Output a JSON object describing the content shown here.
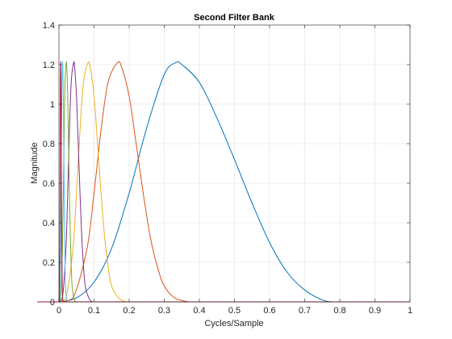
{
  "chart_data": {
    "type": "line",
    "title": "Second Filter Bank",
    "xlabel": "Cycles/Sample",
    "ylabel": "Magnitude",
    "xlim": [
      0,
      1
    ],
    "ylim": [
      0,
      1.4
    ],
    "xticks": [
      0,
      0.1,
      0.2,
      0.3,
      0.4,
      0.5,
      0.6,
      0.7,
      0.8,
      0.9,
      1
    ],
    "xtick_labels": [
      "0",
      "0.1",
      "0.2",
      "0.3",
      "0.4",
      "0.5",
      "0.6",
      "0.7",
      "0.8",
      "0.9",
      "1"
    ],
    "yticks": [
      0,
      0.2,
      0.4,
      0.6,
      0.8,
      1,
      1.2,
      1.4
    ],
    "ytick_labels": [
      "0",
      "0.2",
      "0.4",
      "0.6",
      "0.8",
      "1",
      "1.2",
      "1.4"
    ],
    "grid": true,
    "series": [
      {
        "color": "#0072bd",
        "x": [
          0,
          0.05,
          0.1,
          0.15,
          0.2,
          0.25,
          0.3,
          0.333,
          0.35,
          0.4,
          0.45,
          0.5,
          0.55,
          0.6,
          0.65,
          0.7,
          0.75,
          0.78,
          0.8,
          1
        ],
        "y": [
          0,
          0.02,
          0.1,
          0.27,
          0.55,
          0.88,
          1.15,
          1.21,
          1.2,
          1.11,
          0.93,
          0.72,
          0.5,
          0.3,
          0.15,
          0.06,
          0.01,
          0,
          0,
          0
        ]
      },
      {
        "color": "#d95319",
        "x": [
          0,
          0.04,
          0.08,
          0.1,
          0.12,
          0.14,
          0.167,
          0.18,
          0.2,
          0.22,
          0.24,
          0.26,
          0.28,
          0.3,
          0.33,
          0.37,
          0.4,
          0.5,
          1
        ],
        "y": [
          0,
          0.02,
          0.27,
          0.55,
          0.87,
          1.11,
          1.21,
          1.18,
          1.04,
          0.8,
          0.55,
          0.33,
          0.18,
          0.08,
          0.02,
          0,
          0,
          0,
          0
        ]
      },
      {
        "color": "#edb120",
        "x": [
          0,
          0.02,
          0.04,
          0.05,
          0.06,
          0.07,
          0.083,
          0.09,
          0.1,
          0.11,
          0.12,
          0.13,
          0.14,
          0.15,
          0.17,
          0.19,
          0.2,
          1
        ],
        "y": [
          0,
          0.02,
          0.27,
          0.55,
          0.87,
          1.11,
          1.21,
          1.18,
          1.04,
          0.8,
          0.55,
          0.33,
          0.18,
          0.08,
          0.02,
          0,
          0,
          0
        ]
      },
      {
        "color": "#7e2f8e",
        "x": [
          0,
          0.01,
          0.02,
          0.025,
          0.03,
          0.035,
          0.042,
          0.045,
          0.05,
          0.055,
          0.06,
          0.065,
          0.07,
          0.075,
          0.085,
          0.095,
          0.1,
          1
        ],
        "y": [
          0,
          0.02,
          0.27,
          0.55,
          0.87,
          1.11,
          1.21,
          1.18,
          1.04,
          0.8,
          0.55,
          0.33,
          0.18,
          0.08,
          0.02,
          0,
          0,
          0
        ]
      },
      {
        "color": "#77ac30",
        "x": [
          0,
          0.005,
          0.01,
          0.0125,
          0.015,
          0.0175,
          0.021,
          0.0225,
          0.025,
          0.0275,
          0.03,
          0.0325,
          0.035,
          0.0375,
          0.0425,
          0.0475,
          0.05,
          1
        ],
        "y": [
          0,
          0.02,
          0.27,
          0.55,
          0.87,
          1.11,
          1.21,
          1.18,
          1.04,
          0.8,
          0.55,
          0.33,
          0.18,
          0.08,
          0.02,
          0,
          0,
          0
        ]
      },
      {
        "color": "#4dbeee",
        "x": [
          0,
          0.0025,
          0.005,
          0.00625,
          0.0075,
          0.00875,
          0.0104,
          0.01125,
          0.0125,
          0.01375,
          0.015,
          0.01625,
          0.0175,
          0.01875,
          0.02125,
          0.02375,
          0.025,
          1
        ],
        "y": [
          0,
          0.02,
          0.27,
          0.55,
          0.87,
          1.11,
          1.21,
          1.18,
          1.04,
          0.8,
          0.55,
          0.33,
          0.18,
          0.08,
          0.02,
          0,
          0,
          0
        ]
      },
      {
        "color": "#a2142f",
        "x": [
          0,
          0.00125,
          0.0025,
          0.003125,
          0.00375,
          0.004375,
          0.0052,
          0.005625,
          0.00625,
          0.006875,
          0.0075,
          0.008125,
          0.00875,
          0.009375,
          0.010625,
          0.011875,
          0.0125,
          1
        ],
        "y": [
          0,
          0.02,
          0.27,
          0.55,
          0.87,
          1.11,
          1.21,
          1.18,
          1.04,
          0.8,
          0.55,
          0.33,
          0.18,
          0.08,
          0.02,
          0,
          0,
          0
        ]
      }
    ]
  }
}
